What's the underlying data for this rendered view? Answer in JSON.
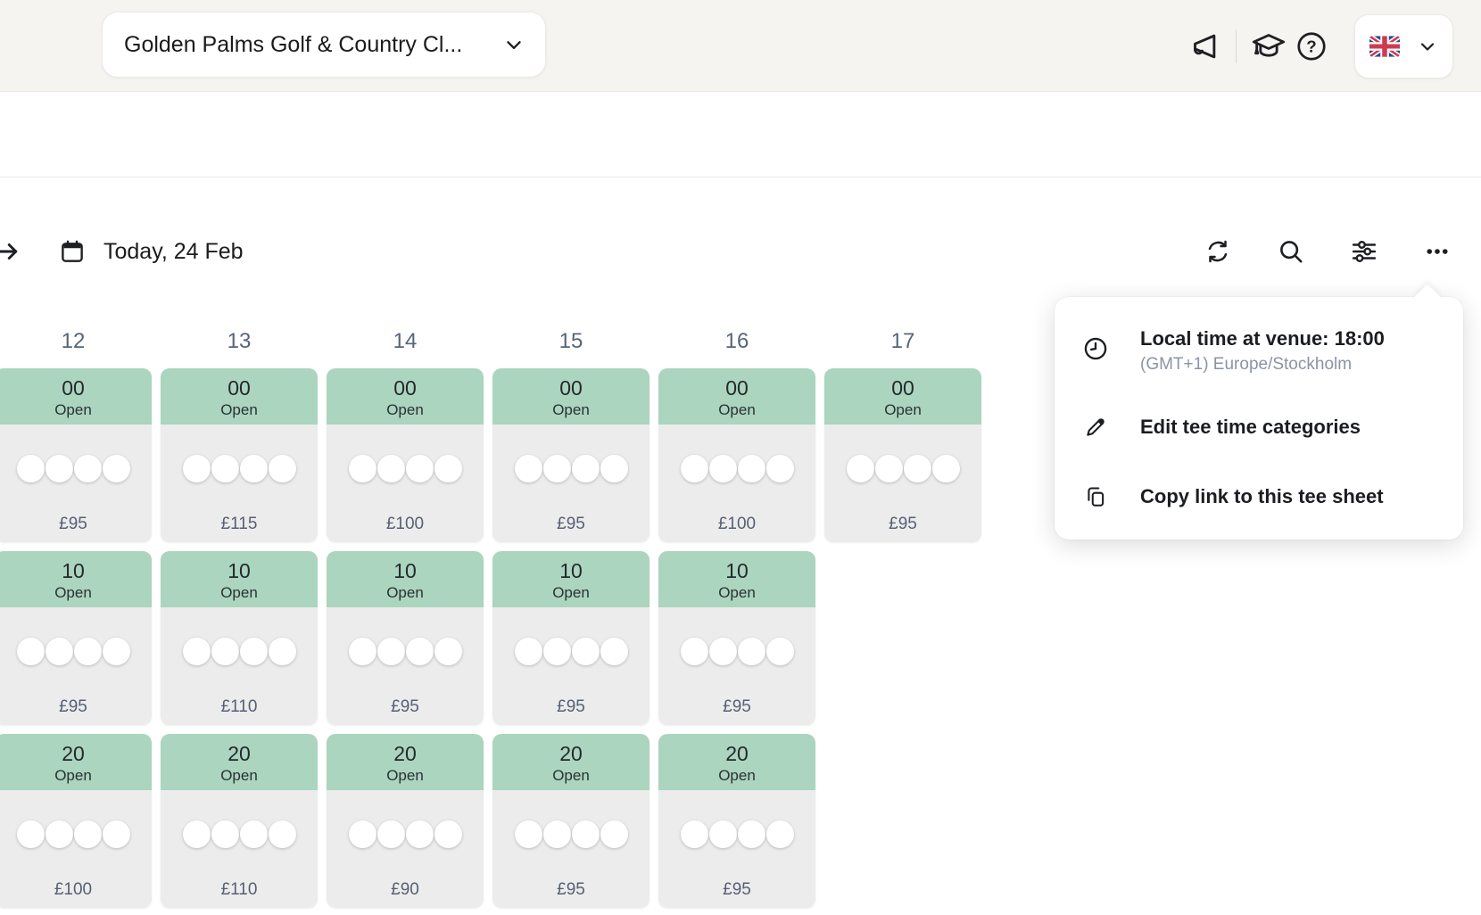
{
  "topbar": {
    "club_selector_label": "Golden Palms Golf & Country Cl...",
    "language": {
      "flag": "United Kingdom",
      "country_code": "GB"
    }
  },
  "toolbar": {
    "date_label": "Today, 24 Feb"
  },
  "more_menu": {
    "local_time_title": "Local time at venue: 18:00",
    "local_time_subtitle": "(GMT+1) Europe/Stockholm",
    "items": [
      {
        "label": "Edit tee time categories"
      },
      {
        "label": "Copy link to this tee sheet"
      }
    ]
  },
  "tee_sheet": {
    "columns": [
      "12",
      "13",
      "14",
      "15",
      "16",
      "17"
    ],
    "rows": [
      {
        "minute": "00",
        "cells": [
          {
            "hour": "12",
            "status": "Open",
            "price": "£95",
            "slots": 4
          },
          {
            "hour": "13",
            "status": "Open",
            "price": "£115",
            "slots": 4
          },
          {
            "hour": "14",
            "status": "Open",
            "price": "£100",
            "slots": 4
          },
          {
            "hour": "15",
            "status": "Open",
            "price": "£95",
            "slots": 4
          },
          {
            "hour": "16",
            "status": "Open",
            "price": "£100",
            "slots": 4
          },
          {
            "hour": "17",
            "status": "Open",
            "price": "£95",
            "slots": 4
          }
        ]
      },
      {
        "minute": "10",
        "cells": [
          {
            "hour": "12",
            "status": "Open",
            "price": "£95",
            "slots": 4
          },
          {
            "hour": "13",
            "status": "Open",
            "price": "£110",
            "slots": 4
          },
          {
            "hour": "14",
            "status": "Open",
            "price": "£95",
            "slots": 4
          },
          {
            "hour": "15",
            "status": "Open",
            "price": "£95",
            "slots": 4
          },
          {
            "hour": "16",
            "status": "Open",
            "price": "£95",
            "slots": 4
          }
        ]
      },
      {
        "minute": "20",
        "cells": [
          {
            "hour": "12",
            "status": "Open",
            "price": "£100",
            "slots": 4
          },
          {
            "hour": "13",
            "status": "Open",
            "price": "£110",
            "slots": 4
          },
          {
            "hour": "14",
            "status": "Open",
            "price": "£90",
            "slots": 4
          },
          {
            "hour": "15",
            "status": "Open",
            "price": "£95",
            "slots": 4
          },
          {
            "hour": "16",
            "status": "Open",
            "price": "£95",
            "slots": 4
          }
        ]
      }
    ]
  },
  "icons": {
    "topbar": [
      "megaphone-icon",
      "graduation-cap-icon",
      "help-icon",
      "uk-flag",
      "chevron-down-icon"
    ],
    "toolbar": [
      "expand-sidebar-arrow-icon",
      "calendar-icon",
      "refresh-icon",
      "search-icon",
      "filter-sliders-icon",
      "more-options-icon"
    ],
    "menu": [
      "clock-icon",
      "pencil-icon",
      "copy-icon"
    ]
  },
  "colors": {
    "topbar_bg": "#f6f4f0",
    "topbar_border": "#e8e6e1",
    "green": "#abd5be",
    "cell_gray": "#ececec",
    "slate": "#586579",
    "slate_dark": "#566075"
  }
}
